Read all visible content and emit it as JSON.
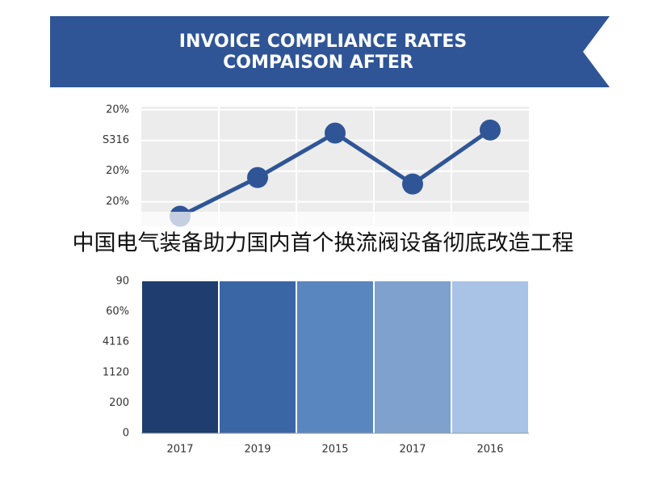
{
  "header": {
    "lines": [
      "INVOICE COMPLIANCE RATES",
      "COMPAISON AFTER"
    ]
  },
  "overlay_text": "中国电气装备助力国内首个换流阀设备彻底改造工程",
  "chart_data": [
    {
      "type": "line",
      "categories": [
        null,
        null,
        null,
        null,
        null
      ],
      "series": [
        {
          "color": "#2f5597",
          "values": [
            -0.47,
            0.79,
            2.24,
            0.58,
            2.34
          ]
        }
      ],
      "ylim": [
        -0.8,
        3.1
      ],
      "yticks": [
        {
          "value": 0,
          "label": "20%"
        },
        {
          "value": 1,
          "label": "20%"
        },
        {
          "value": 2,
          "label": "S316"
        },
        {
          "value": 3,
          "label": "20%"
        }
      ],
      "grid": true
    },
    {
      "type": "bar",
      "categories": [
        "2017",
        "2019",
        "2015",
        "2017",
        "2016"
      ],
      "values": [
        5,
        5,
        5,
        5,
        5
      ],
      "colors": [
        "#1f3d6e",
        "#3b66a6",
        "#5a86bf",
        "#7fa1cd",
        "#a9c3e6"
      ],
      "ylim": [
        0,
        5
      ],
      "yticks": [
        0,
        {
          "value": 1,
          "label": "200"
        },
        {
          "value": 2,
          "label": "1120"
        },
        {
          "value": 3,
          "label": "4116"
        },
        {
          "value": 4,
          "label": "60%"
        },
        {
          "value": 5,
          "label": "90"
        }
      ],
      "grid": false
    }
  ]
}
